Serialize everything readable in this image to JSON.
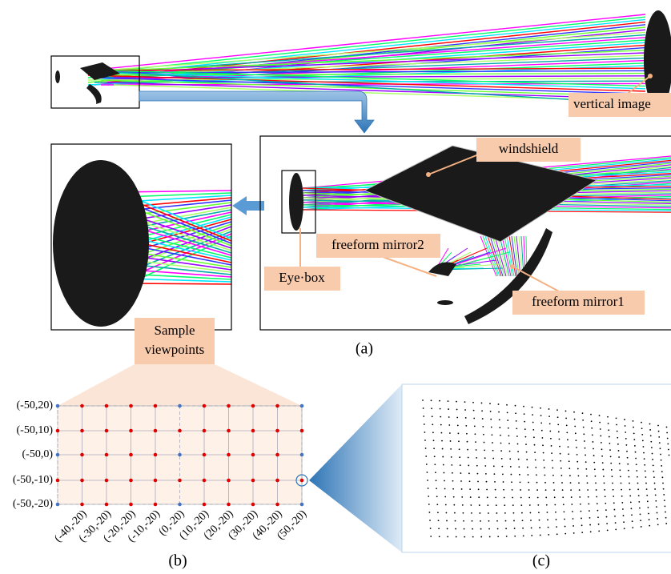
{
  "panel_a": {
    "caption": "(a)",
    "labels": {
      "vertical_image": "vertical image",
      "windshield": "windshield",
      "freeform_mirror2": "freeform mirror2",
      "eye_box": "Eye·box",
      "freeform_mirror1": "freeform mirror1"
    }
  },
  "panel_b": {
    "caption": "(b)",
    "sample_label": [
      "Sample",
      "viewpoints"
    ],
    "y_labels": [
      "(-50,20)",
      "(-50,10)",
      "(-50,0)",
      "(-50,-10)",
      "(-50,-20)"
    ],
    "x_labels": [
      "(-40,-20)",
      "(-30,-20)",
      "(-20,-20)",
      "(-10,-20)",
      "(0,-20)",
      "(10,-20)",
      "(20,-20)",
      "(30,-20)",
      "(40,-20)",
      "(50,-20)"
    ]
  },
  "panel_c": {
    "caption": "(c)"
  }
}
